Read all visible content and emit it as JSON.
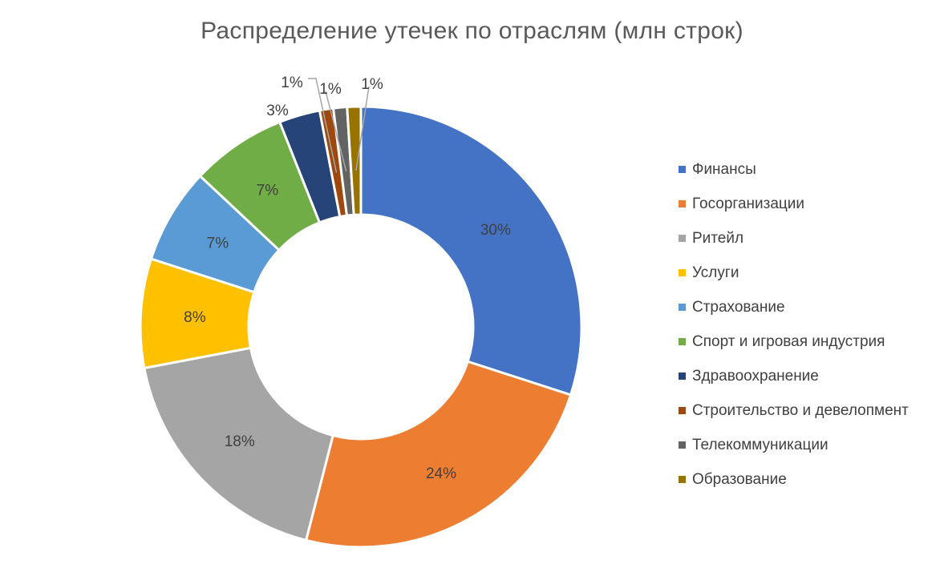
{
  "chart_data": {
    "type": "pie",
    "variant": "donut",
    "title": "Распределение утечек по отраслям (млн строк)",
    "categories": [
      "Финансы",
      "Госорганизации",
      "Ритейл",
      "Услуги",
      "Страхование",
      "Спорт и игровая индустрия",
      "Здравоохранение",
      "Строительство и девелопмент",
      "Телекоммуникации",
      "Образование"
    ],
    "values": [
      30,
      24,
      18,
      8,
      7,
      7,
      3,
      1,
      1,
      1
    ],
    "data_labels": [
      "30%",
      "24%",
      "18%",
      "8%",
      "7%",
      "7%",
      "3%",
      "1%",
      "1%",
      "1%"
    ],
    "colors": [
      "#4472C4",
      "#ED7D31",
      "#A5A5A5",
      "#FFC000",
      "#5B9BD5",
      "#70AD47",
      "#264478",
      "#9E480E",
      "#636363",
      "#997300"
    ],
    "legend_position": "right"
  }
}
